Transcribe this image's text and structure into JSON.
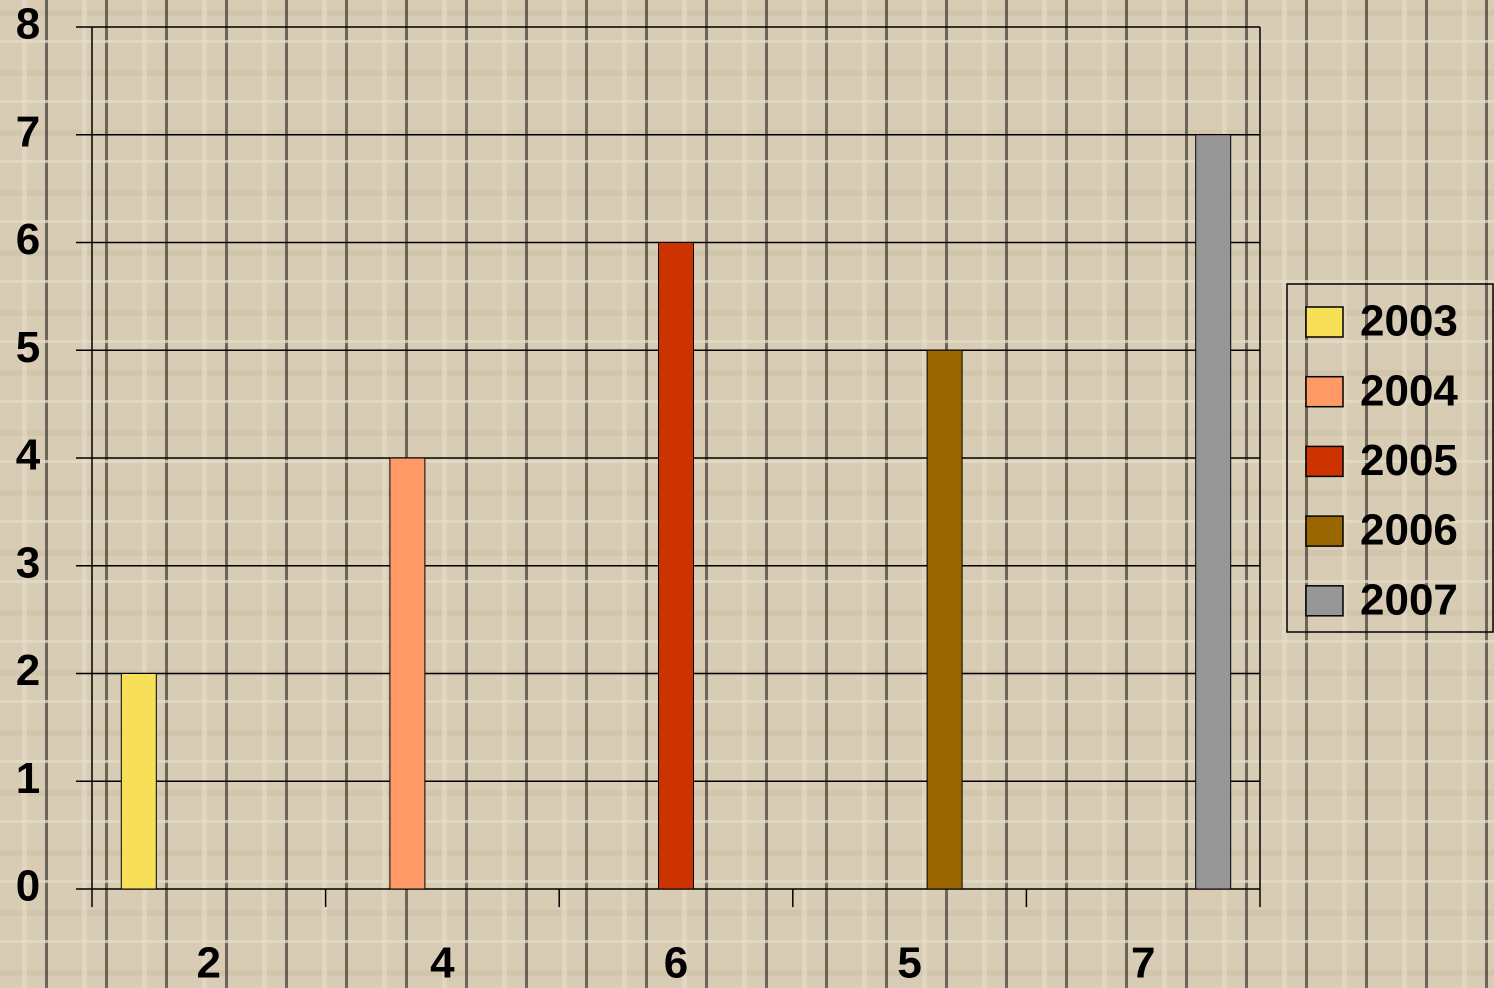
{
  "chart_data": {
    "type": "bar",
    "categories": [
      "2",
      "4",
      "6",
      "5",
      "7"
    ],
    "series": [
      {
        "name": "2003",
        "color": "#f7e058",
        "values": [
          2,
          null,
          null,
          null,
          null
        ]
      },
      {
        "name": "2004",
        "color": "#ff9966",
        "values": [
          null,
          4,
          null,
          null,
          null
        ]
      },
      {
        "name": "2005",
        "color": "#cc3300",
        "values": [
          null,
          null,
          6,
          null,
          null
        ]
      },
      {
        "name": "2006",
        "color": "#996600",
        "values": [
          null,
          null,
          null,
          5,
          null
        ]
      },
      {
        "name": "2007",
        "color": "#969696",
        "values": [
          null,
          null,
          null,
          null,
          7
        ]
      }
    ],
    "ylim": [
      0,
      8
    ],
    "yticks": [
      0,
      1,
      2,
      3,
      4,
      5,
      6,
      7,
      8
    ],
    "grid": true,
    "legend": "right"
  }
}
